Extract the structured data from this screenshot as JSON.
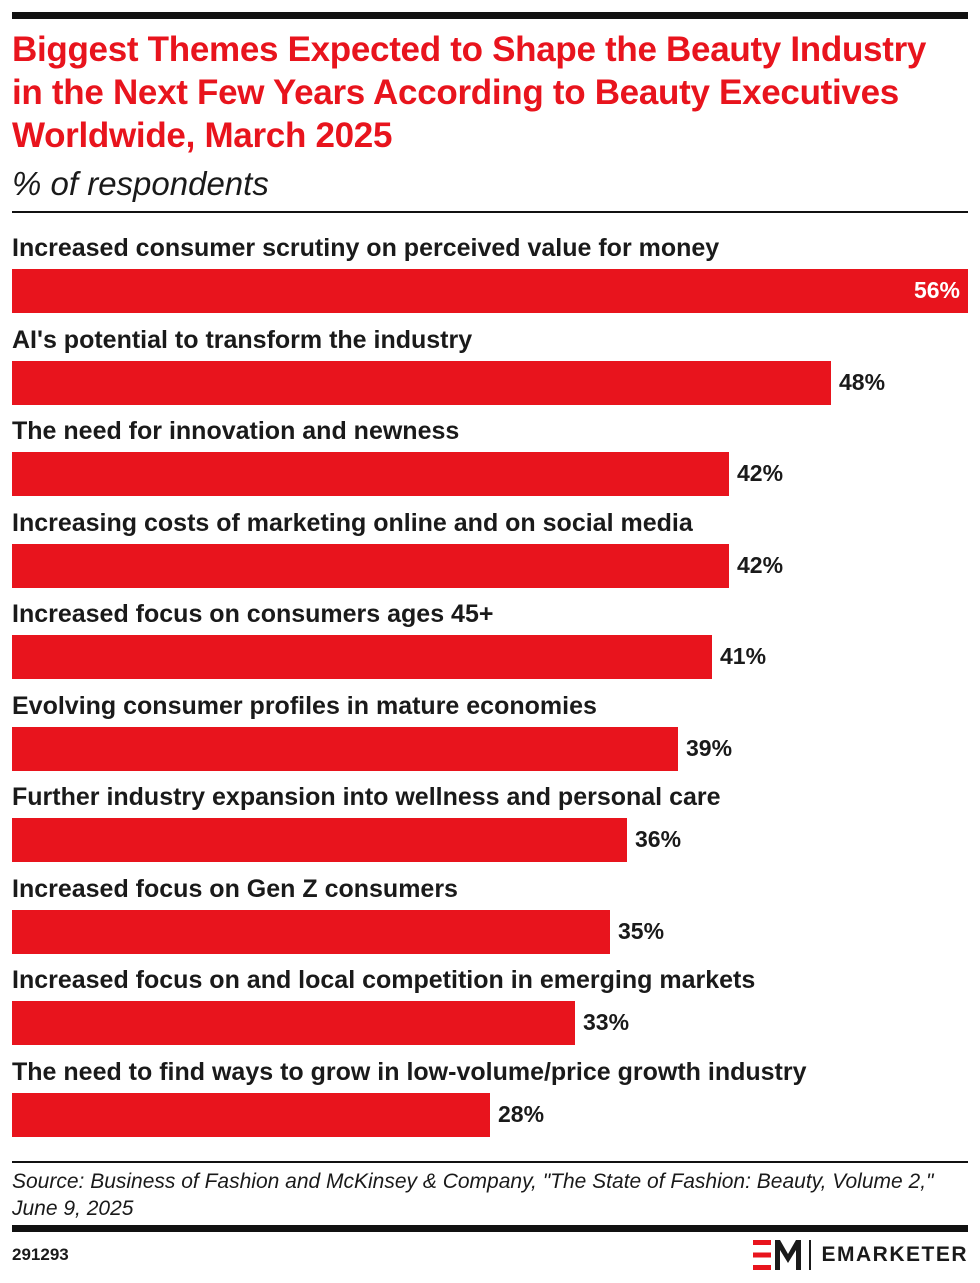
{
  "header": {
    "title": "Biggest Themes Expected to Shape the Beauty Industry in the Next Few Years According to Beauty Executives Worldwide, March 2025",
    "subtitle": "% of respondents"
  },
  "chart_data": {
    "type": "bar",
    "orientation": "horizontal",
    "categories": [
      "Increased consumer scrutiny on perceived value for money",
      "AI's potential to transform the industry",
      "The need for innovation and newness",
      "Increasing costs of marketing online and on social media",
      "Increased focus on consumers ages 45+",
      "Evolving consumer profiles in mature economies",
      "Further industry expansion into wellness and personal care",
      "Increased focus on Gen Z consumers",
      "Increased focus on and local competition in emerging markets",
      "The need to find ways to grow in low-volume/price growth industry"
    ],
    "values": [
      56,
      48,
      42,
      42,
      41,
      39,
      36,
      35,
      33,
      28
    ],
    "value_labels": [
      "56%",
      "48%",
      "42%",
      "42%",
      "41%",
      "39%",
      "36%",
      "35%",
      "33%",
      "28%"
    ],
    "bar_color": "#e8141d",
    "xlim": [
      0,
      56
    ],
    "grid": false,
    "legend": false
  },
  "footer": {
    "source": "Source: Business of Fashion and McKinsey & Company, \"The State of Fashion: Beauty, Volume 2,\" June 9, 2025",
    "chart_id": "291293",
    "brand_name": "EMARKETER"
  },
  "colors": {
    "accent": "#e8141d",
    "text": "#1a1a1a"
  }
}
